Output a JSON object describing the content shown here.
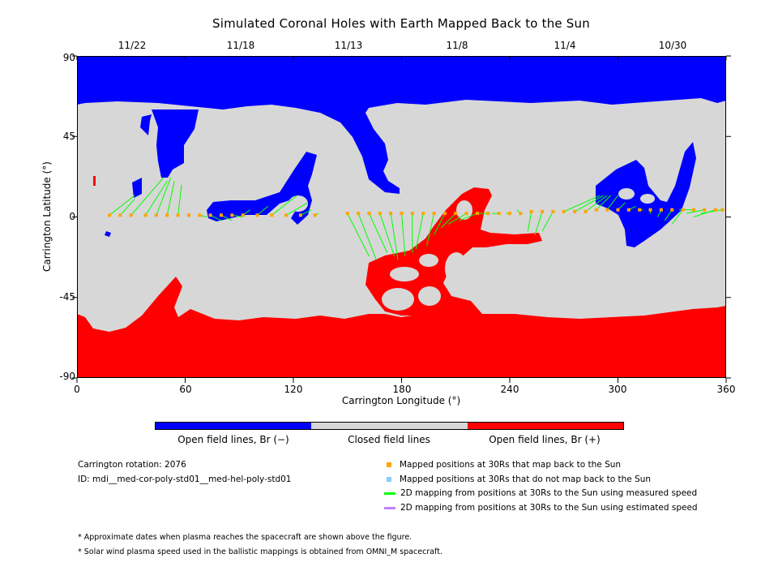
{
  "title": "Simulated Coronal Holes with Earth Mapped Back to the Sun",
  "top_dates": [
    "11/22",
    "11/18",
    "11/13",
    "11/8",
    "11/4",
    "10/30"
  ],
  "axes": {
    "x": {
      "label": "Carrington Longitude (°)",
      "ticks": [
        "0",
        "60",
        "120",
        "180",
        "240",
        "300",
        "360"
      ],
      "range": [
        0,
        360
      ]
    },
    "y": {
      "label": "Carrington Latitude (°)",
      "ticks": [
        "90",
        "45",
        "0",
        "-45",
        "-90"
      ],
      "range": [
        -90,
        90
      ]
    }
  },
  "colors": {
    "open_negative": "#0000ff",
    "closed": "#d7d7d7",
    "open_positive": "#ff0000",
    "mapped_point": "#ffa500",
    "unmapped_point": "#87cefa",
    "measured_line": "#00ff00",
    "estimated_line": "#c080ff"
  },
  "colorbar": {
    "labels": [
      "Open field lines, Br (−)",
      "Closed field lines",
      "Open field lines, Br (+)"
    ]
  },
  "info": {
    "rotation": "Carrington rotation: 2076",
    "id": "ID: mdi__med-cor-poly-std01__med-hel-poly-std01"
  },
  "legend": [
    {
      "marker": "square",
      "color": "#ffa500",
      "label": "Mapped positions at 30Rs that map back to the Sun"
    },
    {
      "marker": "square",
      "color": "#87cefa",
      "label": "Mapped positions at 30Rs that do not map back to the Sun"
    },
    {
      "marker": "line",
      "color": "#00ff00",
      "label": "2D mapping from positions at 30Rs to the Sun using measured speed"
    },
    {
      "marker": "line",
      "color": "#c080ff",
      "label": "2D mapping from positions at 30Rs to the Sun using estimated speed"
    }
  ],
  "notes": [
    "* Approximate dates when plasma reaches the spacecraft are shown above the figure.",
    "* Solar wind plasma speed used in the ballistic mappings is obtained from OMNI_M spacecraft."
  ],
  "chart_data": {
    "type": "heatmap",
    "map_type": "coronal hole map with footpoint mappings",
    "xlabel": "Carrington Longitude (°)",
    "ylabel": "Carrington Latitude (°)",
    "xlim": [
      0,
      360
    ],
    "ylim": [
      -90,
      90
    ],
    "categories": [
      "Open field lines, Br (−)",
      "Closed field lines",
      "Open field lines, Br (+)"
    ],
    "mapped_points_lon": [
      18,
      24,
      30,
      38,
      44,
      50,
      56,
      62,
      68,
      74,
      80,
      86,
      92,
      100,
      108,
      116,
      124,
      132,
      150,
      156,
      162,
      168,
      174,
      180,
      186,
      192,
      198,
      204,
      210,
      216,
      222,
      228,
      234,
      240,
      246,
      252,
      258,
      264,
      270,
      276,
      282,
      288,
      294,
      300,
      306,
      312,
      318,
      324,
      330,
      336,
      342,
      348,
      354,
      358
    ],
    "mapped_points_lat": [
      1,
      1,
      1,
      1,
      1,
      1,
      1,
      1,
      1,
      1,
      1,
      1,
      1,
      1,
      1,
      1,
      1,
      1,
      2,
      2,
      2,
      2,
      2,
      2,
      2,
      2,
      2,
      2,
      2,
      2,
      2,
      2,
      2,
      2,
      2,
      3,
      3,
      3,
      3,
      3,
      3,
      4,
      4,
      4,
      4,
      4,
      4,
      4,
      4,
      4,
      4,
      4,
      4,
      4
    ],
    "footpoint_lon": [
      32,
      32,
      48,
      50,
      52,
      54,
      58,
      62,
      72,
      80,
      86,
      92,
      96,
      106,
      122,
      128,
      130,
      134,
      162,
      166,
      172,
      176,
      178,
      182,
      186,
      188,
      194,
      198,
      202,
      206,
      212,
      222,
      230,
      238,
      244,
      250,
      254,
      258,
      290,
      292,
      294,
      296,
      300,
      304,
      310,
      314,
      318,
      322,
      326,
      330,
      334,
      338,
      342,
      346
    ],
    "footpoint_lat": [
      12,
      10,
      22,
      20,
      22,
      20,
      18,
      0,
      0,
      -2,
      -2,
      0,
      4,
      6,
      12,
      8,
      4,
      2,
      -22,
      -24,
      -20,
      -22,
      -24,
      -22,
      -20,
      -18,
      -16,
      -10,
      -6,
      -4,
      -2,
      2,
      2,
      2,
      4,
      -8,
      -10,
      -8,
      12,
      12,
      12,
      12,
      12,
      8,
      6,
      4,
      2,
      0,
      -2,
      -4,
      4,
      2,
      0,
      2
    ]
  }
}
